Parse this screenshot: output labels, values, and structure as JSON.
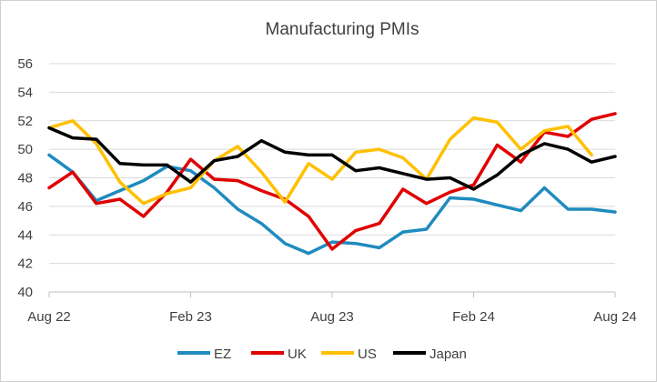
{
  "chart_data": {
    "type": "line",
    "title": "Manufacturing PMIs",
    "xlabel": "",
    "ylabel": "",
    "ylim": [
      40,
      56
    ],
    "yticks": [
      40,
      42,
      44,
      46,
      48,
      50,
      52,
      54,
      56
    ],
    "x_tick_labels": [
      "Aug 22",
      "Feb 23",
      "Aug 23",
      "Feb 24",
      "Aug 24"
    ],
    "x_tick_month_index": [
      0,
      6,
      12,
      18,
      24
    ],
    "months": [
      "Aug 22",
      "Sep 22",
      "Oct 22",
      "Nov 22",
      "Dec 22",
      "Jan 23",
      "Feb 23",
      "Mar 23",
      "Apr 23",
      "May 23",
      "Jun 23",
      "Jul 23",
      "Aug 23",
      "Sep 23",
      "Oct 23",
      "Nov 23",
      "Dec 23",
      "Jan 24",
      "Feb 24",
      "Mar 24",
      "Apr 24",
      "May 24",
      "Jun 24",
      "Jul 24",
      "Aug 24"
    ],
    "grid": true,
    "legend_position": "bottom",
    "series": [
      {
        "name": "EZ",
        "color": "#1f8bbf",
        "start_index": 0,
        "values": [
          49.6,
          48.4,
          46.4,
          47.1,
          47.8,
          48.8,
          48.5,
          47.3,
          45.8,
          44.8,
          43.4,
          42.7,
          43.5,
          43.4,
          43.1,
          44.2,
          44.4,
          46.6,
          46.5,
          46.1,
          45.7,
          47.3,
          45.8,
          45.8,
          45.6
        ]
      },
      {
        "name": "UK",
        "color": "#e00000",
        "start_index": 0,
        "values": [
          47.3,
          48.4,
          46.2,
          46.5,
          45.3,
          47.0,
          49.3,
          47.9,
          47.8,
          47.1,
          46.5,
          45.3,
          43.0,
          44.3,
          44.8,
          47.2,
          46.2,
          47.0,
          47.5,
          50.3,
          49.1,
          51.2,
          50.9,
          52.1,
          52.5
        ]
      },
      {
        "name": "US",
        "color": "#ffc000",
        "start_index": 0,
        "values": [
          51.5,
          52.0,
          50.4,
          47.7,
          46.2,
          46.9,
          47.3,
          49.2,
          50.2,
          48.4,
          46.3,
          49.0,
          47.9,
          49.8,
          50.0,
          49.4,
          47.9,
          50.7,
          52.2,
          51.9,
          50.0,
          51.3,
          51.6,
          49.6
        ]
      },
      {
        "name": "Japan",
        "color": "#000000",
        "start_index": 0,
        "values": [
          51.5,
          50.8,
          50.7,
          49.0,
          48.9,
          48.9,
          47.7,
          49.2,
          49.5,
          50.6,
          49.8,
          49.6,
          49.6,
          48.5,
          48.7,
          48.3,
          47.9,
          48.0,
          47.2,
          48.2,
          49.6,
          50.4,
          50.0,
          49.1,
          49.5
        ]
      }
    ]
  }
}
